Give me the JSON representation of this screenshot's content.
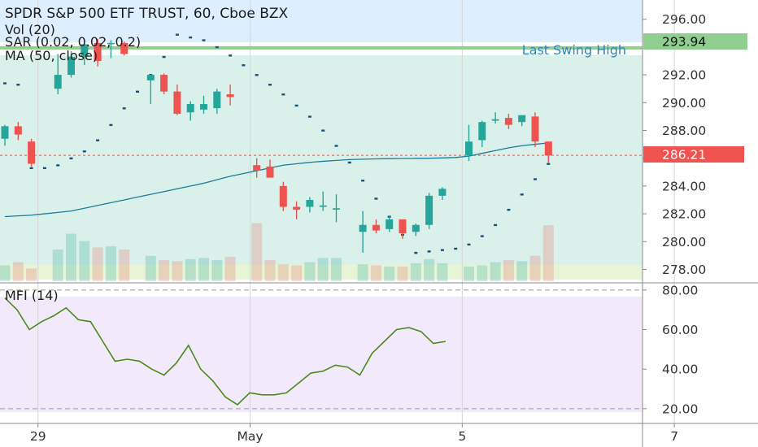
{
  "legend": {
    "title": "SPDR S&P 500 ETF TRUST, 60, Cboe BZX",
    "vol": "Vol (20)",
    "sar": "SAR (0.02, 0.02, 0.2)",
    "ma": "MA (50, close)",
    "mfi": "MFI (14)"
  },
  "annotations": {
    "swing_label": "Last Swing High",
    "swing_value_label": "293.94",
    "price_value_label": "286.21"
  },
  "colors": {
    "bull": "#26a69a",
    "bear": "#ef5350",
    "ma": "#1e7b9a",
    "sar": "#1a5276",
    "mfi": "#4a8c1c",
    "swing": "#8fce8f",
    "swing_text": "#2e86c1",
    "price_line": "#ef5350",
    "upper_zone": "#ddeefe",
    "middle_zone": "#d9f1ea",
    "lower_zone": "#e7f5d6",
    "mfi_bg": "#f2e9fb"
  },
  "chart_data": [
    {
      "type": "candlestick",
      "ticker": "SPDR S&P 500 ETF TRUST",
      "interval": "60",
      "exchange": "Cboe BZX",
      "ylim": [
        277.5,
        296.8
      ],
      "y_ticks": [
        "296.00",
        "292.00",
        "290.00",
        "288.00",
        "286.00",
        "284.00",
        "282.00",
        "280.00",
        "278.00"
      ],
      "y_tick_values": [
        296,
        292,
        290,
        288,
        286,
        284,
        282,
        280,
        278
      ],
      "x_ticks": [
        "29",
        "May",
        "5",
        "7"
      ],
      "x_tick_index": [
        2.5,
        18.5,
        34.5,
        50.5
      ],
      "swing_high": 293.94,
      "last_price": 286.21,
      "candles": [
        {
          "o": 287.4,
          "h": 288.4,
          "l": 286.9,
          "c": 288.3
        },
        {
          "o": 288.3,
          "h": 288.6,
          "l": 287.3,
          "c": 287.7
        },
        {
          "o": 287.2,
          "h": 287.4,
          "l": 285.4,
          "c": 285.6
        },
        {
          "o": null,
          "h": null,
          "l": null,
          "c": null
        },
        {
          "o": 291.0,
          "h": 293.5,
          "l": 290.6,
          "c": 292.0
        },
        {
          "o": 292.0,
          "h": 293.7,
          "l": 291.8,
          "c": 293.3
        },
        {
          "o": 293.3,
          "h": 294.3,
          "l": 292.7,
          "c": 294.2
        },
        {
          "o": 294.3,
          "h": 294.6,
          "l": 292.6,
          "c": 293.0
        },
        {
          "o": 294.2,
          "h": 294.5,
          "l": 293.2,
          "c": 294.3
        },
        {
          "o": 294.3,
          "h": 294.4,
          "l": 293.4,
          "c": 293.5
        },
        {
          "o": null,
          "h": null,
          "l": null,
          "c": null
        },
        {
          "o": 291.6,
          "h": 292.0,
          "l": 289.9,
          "c": 292.0
        },
        {
          "o": 292.0,
          "h": 292.1,
          "l": 290.6,
          "c": 290.8
        },
        {
          "o": 290.8,
          "h": 291.3,
          "l": 289.1,
          "c": 289.2
        },
        {
          "o": 289.3,
          "h": 290.1,
          "l": 288.7,
          "c": 289.9
        },
        {
          "o": 289.5,
          "h": 290.5,
          "l": 289.2,
          "c": 289.9
        },
        {
          "o": 289.6,
          "h": 291.0,
          "l": 289.2,
          "c": 290.8
        },
        {
          "o": 290.6,
          "h": 291.3,
          "l": 289.8,
          "c": 290.4
        },
        {
          "o": null,
          "h": null,
          "l": null,
          "c": null
        },
        {
          "o": 285.5,
          "h": 286.0,
          "l": 284.6,
          "c": 285.1
        },
        {
          "o": 285.4,
          "h": 285.9,
          "l": 284.6,
          "c": 284.6
        },
        {
          "o": 284.0,
          "h": 284.3,
          "l": 282.2,
          "c": 282.5
        },
        {
          "o": 282.5,
          "h": 282.9,
          "l": 281.6,
          "c": 282.3
        },
        {
          "o": 282.5,
          "h": 283.2,
          "l": 282.1,
          "c": 283.0
        },
        {
          "o": 282.5,
          "h": 283.6,
          "l": 282.2,
          "c": 282.6
        },
        {
          "o": 282.3,
          "h": 283.4,
          "l": 281.4,
          "c": 282.4
        },
        {
          "o": null,
          "h": null,
          "l": null,
          "c": null
        },
        {
          "o": 280.7,
          "h": 282.2,
          "l": 279.2,
          "c": 281.2
        },
        {
          "o": 281.2,
          "h": 281.6,
          "l": 280.6,
          "c": 280.8
        },
        {
          "o": 280.9,
          "h": 281.8,
          "l": 280.7,
          "c": 281.6
        },
        {
          "o": 281.6,
          "h": 281.6,
          "l": 280.2,
          "c": 280.6
        },
        {
          "o": 280.7,
          "h": 281.3,
          "l": 280.4,
          "c": 281.2
        },
        {
          "o": 281.2,
          "h": 283.5,
          "l": 280.9,
          "c": 283.3
        },
        {
          "o": 283.3,
          "h": 283.9,
          "l": 283.0,
          "c": 283.8
        },
        {
          "o": null,
          "h": null,
          "l": null,
          "c": null
        },
        {
          "o": 286.2,
          "h": 288.4,
          "l": 285.8,
          "c": 287.2
        },
        {
          "o": 287.3,
          "h": 288.7,
          "l": 286.8,
          "c": 288.6
        },
        {
          "o": 288.7,
          "h": 289.3,
          "l": 288.5,
          "c": 288.8
        },
        {
          "o": 288.9,
          "h": 289.2,
          "l": 288.1,
          "c": 288.4
        },
        {
          "o": 288.6,
          "h": 289.1,
          "l": 288.3,
          "c": 289.1
        },
        {
          "o": 289.0,
          "h": 289.3,
          "l": 286.8,
          "c": 287.2
        },
        {
          "o": 287.2,
          "h": 287.2,
          "l": 285.7,
          "c": 286.2
        }
      ],
      "volume": [
        15,
        18,
        12,
        null,
        30,
        45,
        38,
        32,
        33,
        30,
        null,
        24,
        20,
        19,
        21,
        22,
        20,
        23,
        null,
        55,
        20,
        16,
        15,
        18,
        22,
        22,
        null,
        16,
        15,
        14,
        14,
        17,
        21,
        17,
        null,
        14,
        15,
        18,
        20,
        19,
        24,
        53
      ],
      "ma50": [
        281.8,
        281.85,
        281.9,
        282.0,
        282.1,
        282.2,
        282.4,
        282.6,
        282.8,
        283.0,
        283.2,
        283.4,
        283.6,
        283.8,
        284.0,
        284.2,
        284.45,
        284.7,
        284.9,
        285.1,
        285.3,
        285.5,
        285.6,
        285.7,
        285.78,
        285.84,
        285.9,
        285.93,
        285.95,
        285.97,
        285.98,
        285.99,
        286.0,
        286.02,
        286.05,
        286.15,
        286.35,
        286.55,
        286.75,
        286.9,
        287.0,
        287.1
      ],
      "sar": [
        291.4,
        291.3,
        285.3,
        285.3,
        285.5,
        286.0,
        286.5,
        287.3,
        288.4,
        289.6,
        290.8,
        292.0,
        293.3,
        294.9,
        294.7,
        294.5,
        294.0,
        293.4,
        292.7,
        292.0,
        291.3,
        290.6,
        289.8,
        289.0,
        288.0,
        286.9,
        285.7,
        284.4,
        283.1,
        281.8,
        280.5,
        279.2,
        279.3,
        279.4,
        279.5,
        279.8,
        280.4,
        281.2,
        282.3,
        283.4,
        284.5,
        285.6
      ],
      "sar_index": [
        0,
        1,
        2,
        3,
        4,
        5,
        6,
        7,
        8,
        9,
        10,
        11,
        12,
        13,
        14,
        15,
        16,
        17,
        18,
        19,
        20,
        21,
        22,
        23,
        24,
        25,
        26,
        27,
        28,
        29,
        30,
        31,
        32,
        33,
        34,
        35,
        36,
        37,
        38,
        39,
        40,
        41
      ]
    },
    {
      "type": "line",
      "title": "MFI (14)",
      "ylim": [
        15,
        82
      ],
      "y_ticks": [
        "80.00",
        "60.00",
        "40.00",
        "20.00"
      ],
      "y_tick_values": [
        80,
        60,
        40,
        20
      ],
      "values": [
        76,
        70,
        60,
        64,
        67,
        71,
        65,
        64,
        54,
        44,
        45,
        44,
        40,
        37,
        43,
        52,
        40,
        34,
        26,
        22,
        28,
        27,
        27,
        28,
        33,
        38,
        39,
        42,
        41,
        37,
        48,
        54,
        60,
        61,
        59,
        53,
        54
      ]
    }
  ]
}
